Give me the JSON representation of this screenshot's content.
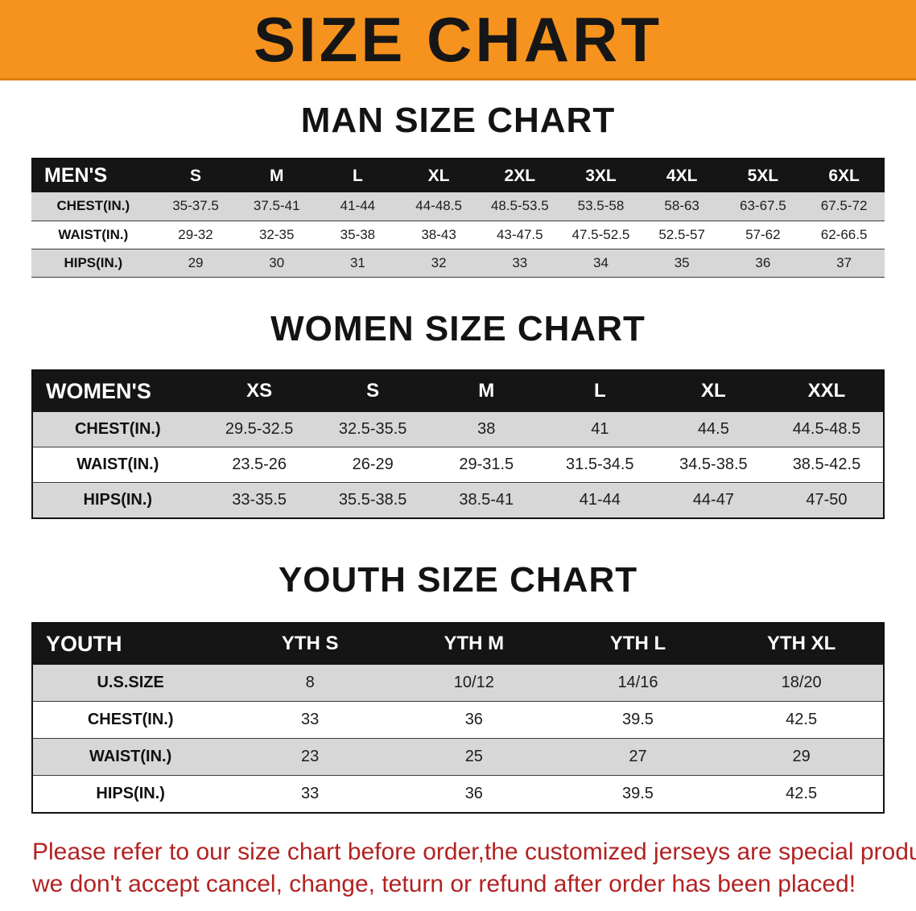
{
  "banner": {
    "title": "SIZE CHART",
    "bg_color": "#F6921E",
    "title_color": "#161616"
  },
  "sections": [
    {
      "id": "men",
      "heading": "MAN SIZE CHART",
      "table": {
        "header": [
          "MEN'S",
          "S",
          "M",
          "L",
          "XL",
          "2XL",
          "3XL",
          "4XL",
          "5XL",
          "6XL"
        ],
        "rows": [
          {
            "label": "CHEST(IN.)",
            "values": [
              "35-37.5",
              "37.5-41",
              "41-44",
              "44-48.5",
              "48.5-53.5",
              "53.5-58",
              "58-63",
              "63-67.5",
              "67.5-72"
            ]
          },
          {
            "label": "WAIST(IN.)",
            "values": [
              "29-32",
              "32-35",
              "35-38",
              "38-43",
              "43-47.5",
              "47.5-52.5",
              "52.5-57",
              "57-62",
              "62-66.5"
            ]
          },
          {
            "label": "HIPS(IN.)",
            "values": [
              "29",
              "30",
              "31",
              "32",
              "33",
              "34",
              "35",
              "36",
              "37"
            ]
          }
        ]
      }
    },
    {
      "id": "women",
      "heading": "WOMEN SIZE CHART",
      "table": {
        "header": [
          "WOMEN'S",
          "XS",
          "S",
          "M",
          "L",
          "XL",
          "XXL"
        ],
        "rows": [
          {
            "label": "CHEST(IN.)",
            "values": [
              "29.5-32.5",
              "32.5-35.5",
              "38",
              "41",
              "44.5",
              "44.5-48.5"
            ]
          },
          {
            "label": "WAIST(IN.)",
            "values": [
              "23.5-26",
              "26-29",
              "29-31.5",
              "31.5-34.5",
              "34.5-38.5",
              "38.5-42.5"
            ]
          },
          {
            "label": "HIPS(IN.)",
            "values": [
              "33-35.5",
              "35.5-38.5",
              "38.5-41",
              "41-44",
              "44-47",
              "47-50"
            ]
          }
        ]
      }
    },
    {
      "id": "youth",
      "heading": "YOUTH SIZE CHART",
      "table": {
        "header": [
          "YOUTH",
          "YTH S",
          "YTH M",
          "YTH L",
          "YTH XL"
        ],
        "rows": [
          {
            "label": "U.S.SIZE",
            "values": [
              "8",
              "10/12",
              "14/16",
              "18/20"
            ]
          },
          {
            "label": "CHEST(IN.)",
            "values": [
              "33",
              "36",
              "39.5",
              "42.5"
            ]
          },
          {
            "label": "WAIST(IN.)",
            "values": [
              "23",
              "25",
              "27",
              "29"
            ]
          },
          {
            "label": "HIPS(IN.)",
            "values": [
              "33",
              "36",
              "39.5",
              "42.5"
            ]
          }
        ]
      }
    }
  ],
  "footer": {
    "lines": [
      "Please refer to our size chart before order,the customized jerseys are special products,",
      "we don't accept cancel, change, teturn or refund after order has been placed!"
    ],
    "text_color": "#B22222"
  }
}
